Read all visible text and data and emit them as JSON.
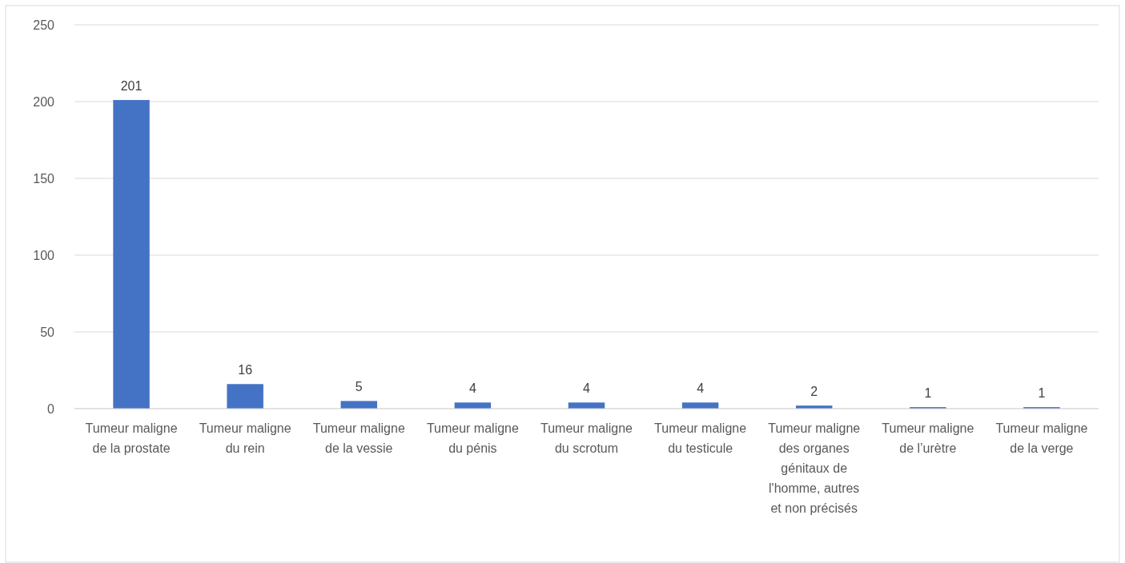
{
  "chart_data": {
    "type": "bar",
    "categories": [
      "Tumeur maligne de la prostate",
      "Tumeur maligne du rein",
      "Tumeur maligne de la vessie",
      "Tumeur maligne du pénis",
      "Tumeur maligne du scrotum",
      "Tumeur maligne du testicule",
      "Tumeur maligne des organes génitaux de l'homme, autres et non précisés",
      "Tumeur maligne de l’urètre",
      "Tumeur maligne de la verge"
    ],
    "values": [
      201,
      16,
      5,
      4,
      4,
      4,
      2,
      1,
      1
    ],
    "color": "#4472c4",
    "ylim": [
      0,
      250
    ],
    "yticks": [
      0,
      50,
      100,
      150,
      200,
      250
    ],
    "grid": "y",
    "data_labels": true
  }
}
